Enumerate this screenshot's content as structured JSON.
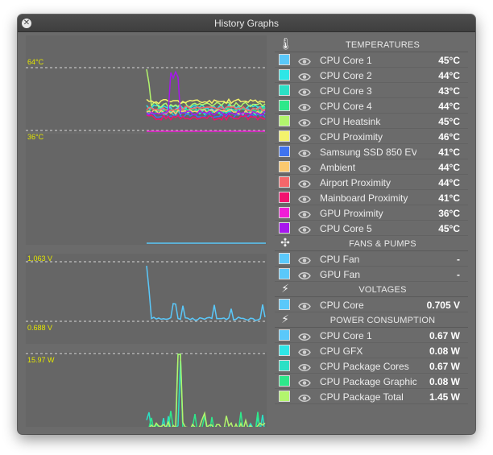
{
  "window": {
    "title": "History Graphs",
    "close_glyph": "✕"
  },
  "graphs": [
    {
      "max_label": "64°C",
      "min_label": "36°C"
    },
    {
      "max_label": "1.063 V",
      "min_label": "0.688 V"
    },
    {
      "max_label": "15.97 W",
      "min_label": "-"
    }
  ],
  "sections": [
    {
      "title": "TEMPERATURES",
      "icon": "thermometer-icon",
      "icon_glyph": "🌡",
      "rows": [
        {
          "name": "CPU Core 1",
          "value": "45°C",
          "color": "#5ac8fa"
        },
        {
          "name": "CPU Core 2",
          "value": "44°C",
          "color": "#2ee6e6"
        },
        {
          "name": "CPU Core 3",
          "value": "43°C",
          "color": "#2be0c5"
        },
        {
          "name": "CPU Core 4",
          "value": "44°C",
          "color": "#2ee88a"
        },
        {
          "name": "CPU Heatsink",
          "value": "45°C",
          "color": "#b2f56d"
        },
        {
          "name": "CPU Proximity",
          "value": "46°C",
          "color": "#f4f36c"
        },
        {
          "name": "Samsung SSD 850 EV...",
          "value": "41°C",
          "color": "#3f73f0"
        },
        {
          "name": "Ambient",
          "value": "44°C",
          "color": "#fbc96f"
        },
        {
          "name": "Airport Proximity",
          "value": "44°C",
          "color": "#f5676a"
        },
        {
          "name": "Mainboard Proximity",
          "value": "41°C",
          "color": "#f2126f"
        },
        {
          "name": "GPU Proximity",
          "value": "36°C",
          "color": "#f11cd6"
        },
        {
          "name": "CPU Core 5",
          "value": "45°C",
          "color": "#a716ee"
        }
      ]
    },
    {
      "title": "FANS & PUMPS",
      "icon": "fan-icon",
      "icon_glyph": "✣",
      "rows": [
        {
          "name": "CPU Fan",
          "value": "-",
          "color": "#5ac8fa"
        },
        {
          "name": "GPU Fan",
          "value": "-",
          "color": "#5ac8fa"
        }
      ]
    },
    {
      "title": "VOLTAGES",
      "icon": "lightning-icon",
      "icon_glyph": "⚡",
      "rows": [
        {
          "name": "CPU Core",
          "value": "0.705 V",
          "color": "#5ac8fa"
        }
      ]
    },
    {
      "title": "POWER CONSUMPTION",
      "icon": "lightning-icon",
      "icon_glyph": "⚡",
      "rows": [
        {
          "name": "CPU Core 1",
          "value": "0.67 W",
          "color": "#5ac8fa"
        },
        {
          "name": "CPU GFX",
          "value": "0.08 W",
          "color": "#2ee6e6"
        },
        {
          "name": "CPU Package Cores",
          "value": "0.67 W",
          "color": "#2be0c5"
        },
        {
          "name": "CPU Package Graphics",
          "value": "0.08 W",
          "color": "#2ee88a"
        },
        {
          "name": "CPU Package Total",
          "value": "1.45 W",
          "color": "#b2f56d"
        }
      ]
    }
  ]
}
